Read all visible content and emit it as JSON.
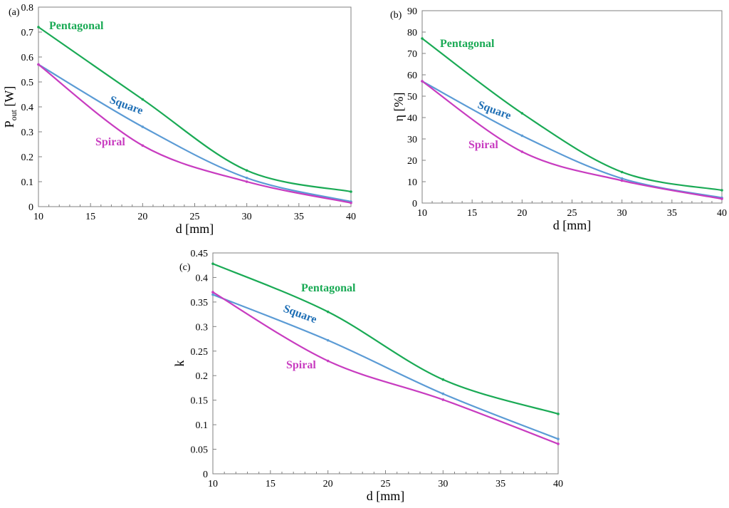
{
  "colors": {
    "pentagonal": "#1aaa55",
    "square": "#5b9bd5",
    "square_label": "#1f6fb5",
    "spiral": "#c83cc0",
    "frame": "#808080"
  },
  "chart_data": [
    {
      "panel_label": "(a)",
      "type": "line",
      "xlabel": "d [mm]",
      "ylabel_main": "P",
      "ylabel_sub": "out",
      "ylabel_unit": " [W]",
      "xlim": [
        10,
        40
      ],
      "ylim": [
        0,
        0.8
      ],
      "xticks": [
        "10",
        "15",
        "20",
        "25",
        "30",
        "35",
        "40"
      ],
      "yticks": [
        "0",
        "0.1",
        "0.2",
        "0.3",
        "0.4",
        "0.5",
        "0.6",
        "0.7",
        "0.8"
      ],
      "grid": false,
      "series": [
        {
          "name": "Pentagonal",
          "x": [
            10,
            20,
            30,
            40
          ],
          "y": [
            0.72,
            0.43,
            0.145,
            0.06
          ]
        },
        {
          "name": "Square",
          "x": [
            10,
            20,
            30,
            40
          ],
          "y": [
            0.57,
            0.32,
            0.115,
            0.02
          ]
        },
        {
          "name": "Spiral",
          "x": [
            10,
            20,
            30,
            40
          ],
          "y": [
            0.57,
            0.245,
            0.1,
            0.015
          ]
        }
      ]
    },
    {
      "panel_label": "(b)",
      "type": "line",
      "xlabel": "d [mm]",
      "ylabel_main": "η [%]",
      "ylabel_sub": "",
      "ylabel_unit": "",
      "xlim": [
        10,
        40
      ],
      "ylim": [
        0,
        90
      ],
      "xticks": [
        "10",
        "15",
        "20",
        "25",
        "30",
        "35",
        "40"
      ],
      "yticks": [
        "0",
        "10",
        "20",
        "30",
        "40",
        "50",
        "60",
        "70",
        "80",
        "90"
      ],
      "grid": false,
      "series": [
        {
          "name": "Pentagonal",
          "x": [
            10,
            20,
            30,
            40
          ],
          "y": [
            77,
            42,
            14.5,
            6
          ]
        },
        {
          "name": "Square",
          "x": [
            10,
            20,
            30,
            40
          ],
          "y": [
            57,
            31.5,
            11.5,
            2.5
          ]
        },
        {
          "name": "Spiral",
          "x": [
            10,
            20,
            30,
            40
          ],
          "y": [
            57,
            24,
            10.5,
            2
          ]
        }
      ]
    },
    {
      "panel_label": "(c)",
      "type": "line",
      "xlabel": "d [mm]",
      "ylabel_main": "k",
      "ylabel_sub": "",
      "ylabel_unit": "",
      "xlim": [
        10,
        40
      ],
      "ylim": [
        0,
        0.45
      ],
      "xticks": [
        "10",
        "15",
        "20",
        "25",
        "30",
        "35",
        "40"
      ],
      "yticks": [
        "0",
        "0.05",
        "0.1",
        "0.15",
        "0.2",
        "0.25",
        "0.3",
        "0.35",
        "0.4",
        "0.45"
      ],
      "grid": false,
      "series": [
        {
          "name": "Pentagonal",
          "x": [
            10,
            20,
            30,
            40
          ],
          "y": [
            0.428,
            0.33,
            0.192,
            0.122
          ]
        },
        {
          "name": "Square",
          "x": [
            10,
            20,
            30,
            40
          ],
          "y": [
            0.365,
            0.272,
            0.163,
            0.071
          ]
        },
        {
          "name": "Spiral",
          "x": [
            10,
            20,
            30,
            40
          ],
          "y": [
            0.37,
            0.23,
            0.151,
            0.061
          ]
        }
      ]
    }
  ]
}
